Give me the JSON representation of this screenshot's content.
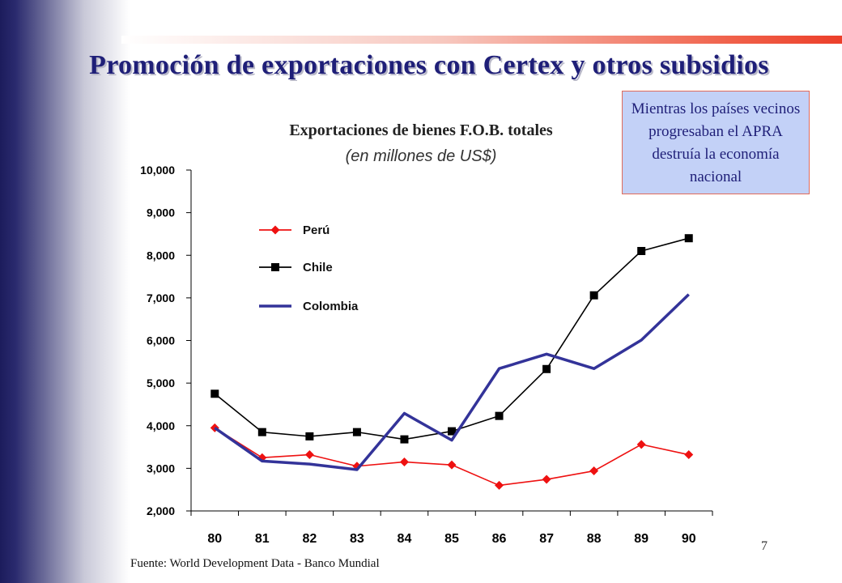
{
  "slide": {
    "title": "Promoción de exportaciones con Certex y otros subsidios",
    "note": "Mientras los países vecinos progresaban el APRA destruía la economía nacional",
    "source": "Fuente: World Development Data - Banco Mundial",
    "page_number": "7"
  },
  "chart_data": {
    "type": "line",
    "title": "Exportaciones de bienes  F.O.B. totales",
    "subtitle": "(en millones de US$)",
    "categories": [
      "80",
      "81",
      "82",
      "83",
      "84",
      "85",
      "86",
      "87",
      "88",
      "89",
      "90"
    ],
    "ylim": [
      2000,
      10000
    ],
    "yticks": [
      2000,
      3000,
      4000,
      5000,
      6000,
      7000,
      8000,
      9000,
      10000
    ],
    "ytick_labels": [
      "2,000",
      "3,000",
      "4,000",
      "5,000",
      "6,000",
      "7,000",
      "8,000",
      "9,000",
      "10,000"
    ],
    "legend_position": "upper-left inside plot",
    "grid": false,
    "series": [
      {
        "name": "Perú",
        "color": "#ee1111",
        "marker": "diamond",
        "values": [
          3950,
          3250,
          3320,
          3050,
          3150,
          3080,
          2600,
          2740,
          2940,
          3560,
          3320
        ]
      },
      {
        "name": "Chile",
        "color": "#000000",
        "marker": "square",
        "values": [
          4750,
          3850,
          3750,
          3850,
          3680,
          3870,
          4230,
          5330,
          7060,
          8100,
          8400
        ]
      },
      {
        "name": "Colombia",
        "color": "#333399",
        "marker": "none",
        "values": [
          3950,
          3170,
          3100,
          2970,
          4290,
          3660,
          5340,
          5680,
          5340,
          6010,
          7080
        ]
      }
    ]
  },
  "colors": {
    "title": "#1f1f78",
    "note_background": "#c3d1f7",
    "note_border": "#e06b5b"
  }
}
